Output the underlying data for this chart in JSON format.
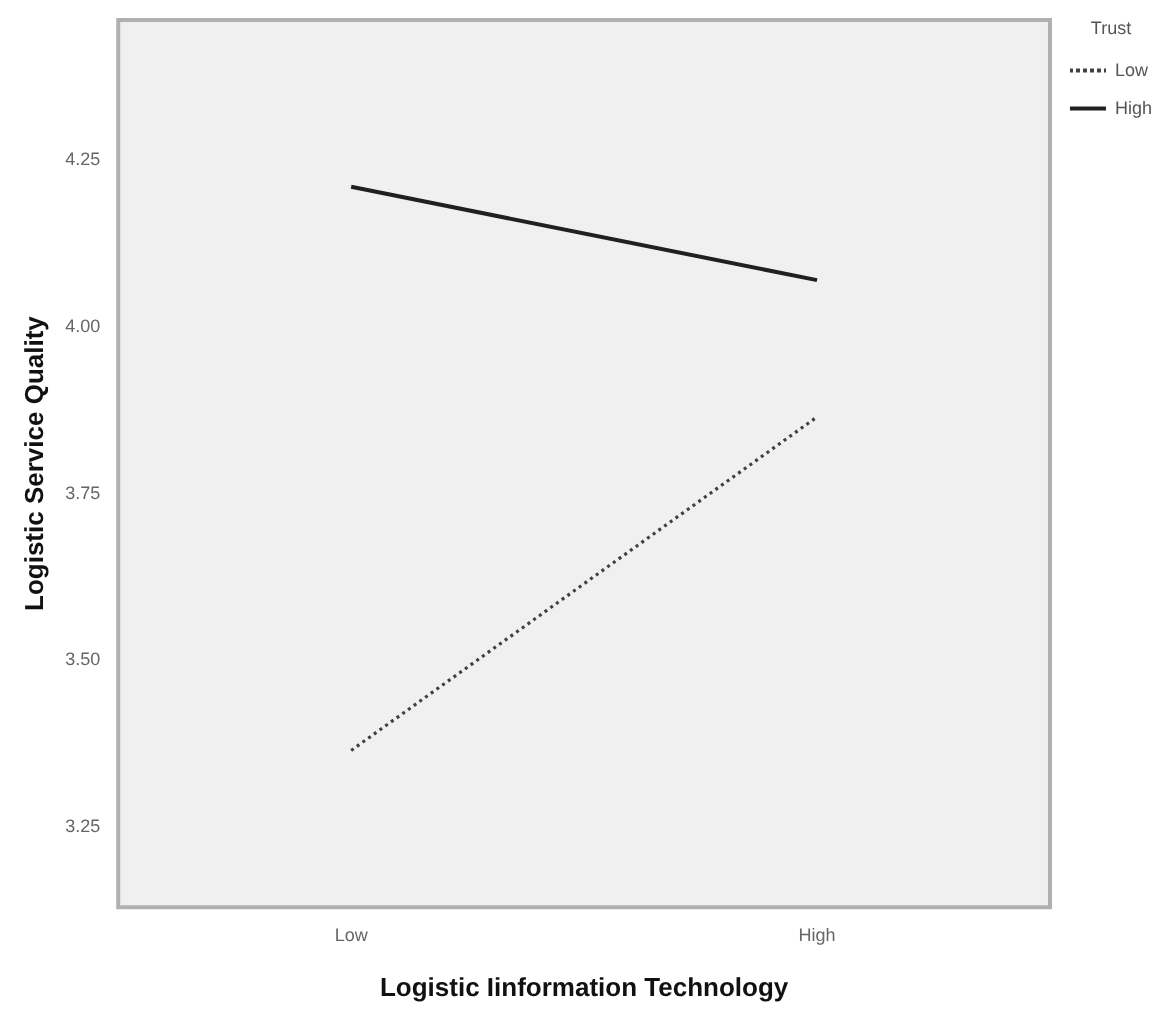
{
  "chart_data": {
    "type": "line",
    "xlabel": "Logistic Iinformation Technology",
    "ylabel": "Logistic Service Quality",
    "legend_title": "Trust",
    "categories": [
      "Low",
      "High"
    ],
    "series": [
      {
        "name": "Low",
        "color": "#404040",
        "values": [
          3.365,
          3.865
        ],
        "line_style": "dotted"
      },
      {
        "name": "High",
        "color": "#202020",
        "values": [
          4.21,
          4.07
        ],
        "line_style": "solid"
      }
    ],
    "ylim": [
      3.13,
      4.46
    ],
    "yticks": [
      {
        "value": 3.25,
        "label": "3.25"
      },
      {
        "value": 3.5,
        "label": "3.50"
      },
      {
        "value": 3.75,
        "label": "3.75"
      },
      {
        "value": 4,
        "label": "4.00"
      },
      {
        "value": 4.25,
        "label": "4.25"
      }
    ],
    "grid": false,
    "legend": "top right",
    "marker": "none"
  }
}
